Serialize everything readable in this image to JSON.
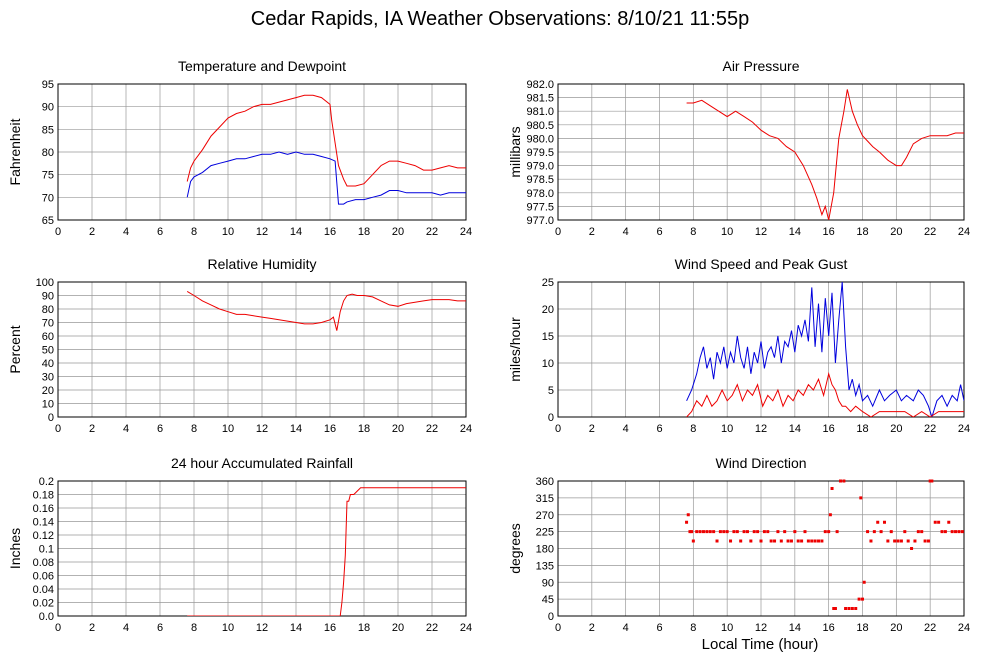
{
  "page": {
    "title": "Cedar Rapids, IA Weather Observations: 8/10/21 11:55p",
    "x_axis_title": "Local Time (hour)"
  },
  "colors": {
    "red": "#ee0000",
    "blue": "#0000dd",
    "grid": "#999999"
  },
  "chart_data": [
    {
      "id": "temp",
      "type": "line",
      "title": "Temperature and Dewpoint",
      "ylabel": "Fahrenheit",
      "xlim": [
        0,
        24
      ],
      "ylim": [
        65,
        95
      ],
      "yticks": [
        "65",
        "70",
        "75",
        "80",
        "85",
        "90",
        "95"
      ],
      "xticks": [
        "0",
        "2",
        "4",
        "6",
        "8",
        "10",
        "12",
        "14",
        "16",
        "18",
        "20",
        "22",
        "24"
      ],
      "grid": true,
      "series": [
        {
          "color": "red",
          "x": [
            7.6,
            7.8,
            8,
            8.5,
            9,
            9.5,
            10,
            10.5,
            11,
            11.5,
            12,
            12.5,
            13,
            13.5,
            14,
            14.5,
            15,
            15.5,
            16,
            16.1,
            16.3,
            16.5,
            16.8,
            17,
            17.5,
            18,
            18.5,
            19,
            19.5,
            20,
            20.5,
            21,
            21.5,
            22,
            22.5,
            23,
            23.5,
            24
          ],
          "y": [
            73.5,
            76.5,
            78,
            80.5,
            83.5,
            85.5,
            87.5,
            88.5,
            89,
            90,
            90.5,
            90.5,
            91,
            91.5,
            92,
            92.5,
            92.5,
            92,
            90.5,
            87,
            82,
            77,
            74,
            72.5,
            72.5,
            73,
            75,
            77,
            78,
            78,
            77.5,
            77,
            76,
            76,
            76.5,
            77,
            76.5,
            76.5
          ]
        },
        {
          "color": "blue",
          "x": [
            7.6,
            7.8,
            8,
            8.5,
            9,
            9.5,
            10,
            10.5,
            11,
            11.5,
            12,
            12.5,
            13,
            13.5,
            14,
            14.5,
            15,
            15.5,
            16,
            16.3,
            16.5,
            16.8,
            17,
            17.5,
            18,
            18.5,
            19,
            19.5,
            20,
            20.5,
            21,
            21.5,
            22,
            22.5,
            23,
            23.5,
            24
          ],
          "y": [
            70,
            73.5,
            74.5,
            75.5,
            77,
            77.5,
            78,
            78.5,
            78.5,
            79,
            79.5,
            79.5,
            80,
            79.5,
            80,
            79.5,
            79.5,
            79,
            78.5,
            78,
            68.5,
            68.5,
            69,
            69.5,
            69.5,
            70,
            70.5,
            71.5,
            71.5,
            71,
            71,
            71,
            71,
            70.5,
            71,
            71,
            71
          ]
        }
      ]
    },
    {
      "id": "pressure",
      "type": "line",
      "title": "Air Pressure",
      "ylabel": "millibars",
      "xlim": [
        0,
        24
      ],
      "ylim": [
        977.0,
        982.0
      ],
      "yticks": [
        "977.0",
        "977.5",
        "978.0",
        "978.5",
        "979.0",
        "979.5",
        "980.0",
        "980.5",
        "981.0",
        "981.5",
        "982.0"
      ],
      "xticks": [
        "0",
        "2",
        "4",
        "6",
        "8",
        "10",
        "12",
        "14",
        "16",
        "18",
        "20",
        "22",
        "24"
      ],
      "grid": true,
      "series": [
        {
          "color": "red",
          "x": [
            7.6,
            8,
            8.5,
            9,
            9.5,
            10,
            10.5,
            11,
            11.5,
            12,
            12.5,
            13,
            13.5,
            14,
            14.5,
            15,
            15.3,
            15.6,
            15.8,
            16,
            16.3,
            16.6,
            16.9,
            17.1,
            17.4,
            17.7,
            18,
            18.3,
            18.6,
            19,
            19.5,
            20,
            20.3,
            20.6,
            21,
            21.5,
            22,
            22.5,
            23,
            23.5,
            24
          ],
          "y": [
            981.3,
            981.3,
            981.4,
            981.2,
            981.0,
            980.8,
            981.0,
            980.8,
            980.6,
            980.3,
            980.1,
            980.0,
            979.7,
            979.5,
            979.0,
            978.3,
            977.8,
            977.2,
            977.5,
            977.0,
            978.0,
            980.0,
            981.0,
            981.8,
            981.0,
            980.5,
            980.1,
            979.9,
            979.7,
            979.5,
            979.2,
            979.0,
            979.0,
            979.3,
            979.8,
            980.0,
            980.1,
            980.1,
            980.1,
            980.2,
            980.2
          ]
        }
      ]
    },
    {
      "id": "humidity",
      "type": "line",
      "title": "Relative Humidity",
      "ylabel": "Percent",
      "xlim": [
        0,
        24
      ],
      "ylim": [
        0,
        100
      ],
      "yticks": [
        "0",
        "10",
        "20",
        "30",
        "40",
        "50",
        "60",
        "70",
        "80",
        "90",
        "100"
      ],
      "xticks": [
        "0",
        "2",
        "4",
        "6",
        "8",
        "10",
        "12",
        "14",
        "16",
        "18",
        "20",
        "22",
        "24"
      ],
      "grid": true,
      "series": [
        {
          "color": "red",
          "x": [
            7.6,
            8,
            8.5,
            9,
            9.5,
            10,
            10.5,
            11,
            11.5,
            12,
            12.5,
            13,
            13.5,
            14,
            14.5,
            15,
            15.5,
            16,
            16.2,
            16.4,
            16.6,
            16.8,
            17,
            17.3,
            17.6,
            18,
            18.5,
            19,
            19.5,
            20,
            20.5,
            21,
            21.5,
            22,
            22.5,
            23,
            23.5,
            24
          ],
          "y": [
            93,
            90,
            86,
            83,
            80,
            78,
            76,
            76,
            75,
            74,
            73,
            72,
            71,
            70,
            69,
            69,
            70,
            72,
            74,
            64,
            78,
            86,
            90,
            91,
            90,
            90,
            89,
            86,
            83,
            82,
            84,
            85,
            86,
            87,
            87,
            87,
            86,
            86
          ]
        }
      ]
    },
    {
      "id": "wind",
      "type": "line",
      "title": "Wind Speed and Peak Gust",
      "ylabel": "miles/hour",
      "xlim": [
        0,
        24
      ],
      "ylim": [
        0,
        25
      ],
      "yticks": [
        "0",
        "5",
        "10",
        "15",
        "20",
        "25"
      ],
      "xticks": [
        "0",
        "2",
        "4",
        "6",
        "8",
        "10",
        "12",
        "14",
        "16",
        "18",
        "20",
        "22",
        "24"
      ],
      "grid": true,
      "series": [
        {
          "color": "blue",
          "x": [
            7.6,
            7.9,
            8.2,
            8.4,
            8.6,
            8.8,
            9.0,
            9.2,
            9.4,
            9.6,
            9.8,
            10.0,
            10.2,
            10.4,
            10.6,
            10.8,
            11.0,
            11.2,
            11.4,
            11.6,
            11.8,
            12.0,
            12.2,
            12.4,
            12.6,
            12.8,
            13.0,
            13.2,
            13.4,
            13.6,
            13.8,
            14.0,
            14.2,
            14.4,
            14.6,
            14.8,
            15.0,
            15.2,
            15.4,
            15.6,
            15.8,
            16.0,
            16.2,
            16.4,
            16.6,
            16.8,
            17.0,
            17.2,
            17.4,
            17.6,
            17.8,
            18.0,
            18.3,
            18.6,
            19.0,
            19.3,
            19.6,
            20.0,
            20.3,
            20.6,
            21.0,
            21.3,
            21.6,
            21.9,
            22.1,
            22.4,
            22.7,
            23.0,
            23.3,
            23.6,
            23.8,
            24.0
          ],
          "y": [
            3,
            5,
            8,
            11,
            13,
            9,
            11,
            7,
            12,
            10,
            13,
            9,
            12,
            10,
            15,
            11,
            9,
            13,
            8,
            12,
            10,
            14,
            9,
            12,
            13,
            11,
            15,
            10,
            14,
            13,
            16,
            12,
            17,
            15,
            18,
            14,
            24,
            13,
            21,
            12,
            22,
            15,
            23,
            10,
            18,
            25,
            13,
            5,
            7,
            4,
            6,
            3,
            4,
            2,
            5,
            3,
            4,
            5,
            3,
            4,
            3,
            5,
            4,
            2,
            0,
            3,
            4,
            2,
            4,
            3,
            6,
            3
          ]
        },
        {
          "color": "red",
          "x": [
            7.6,
            7.9,
            8.2,
            8.5,
            8.8,
            9.1,
            9.4,
            9.7,
            10.0,
            10.3,
            10.6,
            10.9,
            11.2,
            11.5,
            11.8,
            12.1,
            12.4,
            12.7,
            13.0,
            13.3,
            13.6,
            13.9,
            14.2,
            14.5,
            14.8,
            15.1,
            15.4,
            15.7,
            16.0,
            16.2,
            16.4,
            16.6,
            16.8,
            17.0,
            17.3,
            17.6,
            18.0,
            18.5,
            19.0,
            19.5,
            20.0,
            20.5,
            21.0,
            21.5,
            22.0,
            22.5,
            23.0,
            23.5,
            24.0
          ],
          "y": [
            0,
            1,
            3,
            2,
            4,
            2,
            3,
            5,
            3,
            4,
            6,
            3,
            5,
            4,
            6,
            2,
            4,
            3,
            5,
            2,
            4,
            3,
            5,
            4,
            6,
            5,
            7,
            4,
            8,
            6,
            5,
            3,
            2,
            2,
            1,
            2,
            1,
            0,
            1,
            1,
            1,
            1,
            0,
            1,
            0,
            1,
            1,
            1,
            1
          ]
        }
      ]
    },
    {
      "id": "rain",
      "type": "line",
      "title": "24 hour Accumulated Rainfall",
      "ylabel": "Inches",
      "xlim": [
        0,
        24
      ],
      "ylim": [
        0,
        0.2
      ],
      "yticks": [
        "0.0",
        "0.02",
        "0.04",
        "0.06",
        "0.08",
        "0.1",
        "0.12",
        "0.14",
        "0.16",
        "0.18",
        "0.2"
      ],
      "xticks": [
        "0",
        "2",
        "4",
        "6",
        "8",
        "10",
        "12",
        "14",
        "16",
        "18",
        "20",
        "22",
        "24"
      ],
      "grid": true,
      "series": [
        {
          "color": "red",
          "x": [
            7.6,
            16.6,
            16.7,
            16.8,
            16.9,
            17.0,
            17.1,
            17.2,
            17.4,
            17.6,
            17.8,
            24.0
          ],
          "y": [
            0,
            0,
            0.02,
            0.05,
            0.09,
            0.17,
            0.17,
            0.18,
            0.18,
            0.185,
            0.19,
            0.19
          ]
        }
      ]
    },
    {
      "id": "direction",
      "type": "scatter",
      "title": "Wind Direction",
      "ylabel": "degrees",
      "xlim": [
        0,
        24
      ],
      "ylim": [
        0,
        360
      ],
      "yticks": [
        "0",
        "45",
        "90",
        "135",
        "180",
        "225",
        "270",
        "315",
        "360"
      ],
      "xticks": [
        "0",
        "2",
        "4",
        "6",
        "8",
        "10",
        "12",
        "14",
        "16",
        "18",
        "20",
        "22",
        "24"
      ],
      "grid": true,
      "series": [
        {
          "color": "red",
          "x": [
            7.6,
            7.7,
            7.8,
            7.9,
            8.0,
            8.2,
            8.4,
            8.6,
            8.8,
            9.0,
            9.2,
            9.4,
            9.6,
            9.8,
            10.0,
            10.2,
            10.4,
            10.6,
            10.8,
            11.0,
            11.2,
            11.4,
            11.6,
            11.8,
            12.0,
            12.2,
            12.4,
            12.6,
            12.8,
            13.0,
            13.2,
            13.4,
            13.6,
            13.8,
            14.0,
            14.2,
            14.4,
            14.6,
            14.8,
            15.0,
            15.2,
            15.4,
            15.6,
            15.8,
            16.0,
            16.1,
            16.2,
            16.3,
            16.4,
            16.5,
            16.7,
            16.9,
            17.0,
            17.2,
            17.4,
            17.6,
            17.8,
            17.9,
            18.0,
            18.1,
            18.3,
            18.5,
            18.7,
            18.9,
            19.1,
            19.3,
            19.5,
            19.7,
            19.9,
            20.1,
            20.3,
            20.5,
            20.7,
            20.9,
            21.1,
            21.3,
            21.5,
            21.7,
            21.9,
            22.0,
            22.1,
            22.3,
            22.5,
            22.7,
            22.9,
            23.1,
            23.3,
            23.5,
            23.7,
            23.9
          ],
          "y": [
            250,
            270,
            225,
            225,
            200,
            225,
            225,
            225,
            225,
            225,
            225,
            200,
            225,
            225,
            225,
            200,
            225,
            225,
            200,
            225,
            225,
            200,
            225,
            225,
            200,
            225,
            225,
            200,
            200,
            225,
            200,
            225,
            200,
            200,
            225,
            200,
            200,
            225,
            200,
            200,
            200,
            200,
            200,
            225,
            225,
            270,
            340,
            20,
            20,
            225,
            360,
            360,
            20,
            20,
            20,
            20,
            45,
            315,
            45,
            90,
            225,
            200,
            225,
            250,
            225,
            250,
            200,
            225,
            200,
            200,
            200,
            225,
            200,
            180,
            200,
            225,
            225,
            200,
            200,
            360,
            360,
            250,
            250,
            225,
            225,
            250,
            225,
            225,
            225,
            225
          ]
        }
      ]
    }
  ]
}
